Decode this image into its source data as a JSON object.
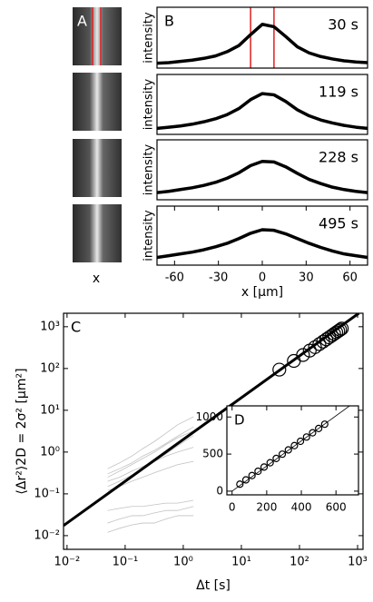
{
  "panel_a": {
    "label": "A",
    "xlabel": "x"
  },
  "chart_data": [
    {
      "type": "line",
      "label": "B",
      "annotation": "30 s",
      "ylabel": "intensity",
      "xlim": [
        -72,
        72
      ],
      "ylim": [
        0,
        1
      ],
      "x": [
        -72,
        -64,
        -56,
        -48,
        -40,
        -32,
        -24,
        -16,
        -8,
        0,
        8,
        16,
        24,
        32,
        40,
        48,
        56,
        64,
        72
      ],
      "vlines": [
        -8,
        8
      ],
      "vline_color": "#e02020",
      "series": [
        {
          "color": "#000000",
          "style": "line",
          "values": [
            0.08,
            0.09,
            0.11,
            0.13,
            0.16,
            0.2,
            0.27,
            0.37,
            0.55,
            0.72,
            0.68,
            0.52,
            0.35,
            0.25,
            0.19,
            0.15,
            0.12,
            0.1,
            0.09
          ]
        }
      ]
    },
    {
      "type": "line",
      "annotation": "119 s",
      "ylabel": "intensity",
      "xlim": [
        -72,
        72
      ],
      "ylim": [
        0,
        1
      ],
      "x": [
        -72,
        -64,
        -56,
        -48,
        -40,
        -32,
        -24,
        -16,
        -8,
        0,
        8,
        16,
        24,
        32,
        40,
        48,
        56,
        64,
        72
      ],
      "series": [
        {
          "color": "#000000",
          "style": "line",
          "values": [
            0.1,
            0.12,
            0.14,
            0.17,
            0.21,
            0.26,
            0.33,
            0.43,
            0.58,
            0.68,
            0.66,
            0.55,
            0.41,
            0.31,
            0.24,
            0.19,
            0.15,
            0.12,
            0.1
          ]
        }
      ]
    },
    {
      "type": "line",
      "annotation": "228 s",
      "ylabel": "intensity",
      "xlim": [
        -72,
        72
      ],
      "ylim": [
        0,
        1
      ],
      "x": [
        -72,
        -64,
        -56,
        -48,
        -40,
        -32,
        -24,
        -16,
        -8,
        0,
        8,
        16,
        24,
        32,
        40,
        48,
        56,
        64,
        72
      ],
      "series": [
        {
          "color": "#000000",
          "style": "line",
          "values": [
            0.12,
            0.14,
            0.17,
            0.2,
            0.24,
            0.29,
            0.36,
            0.45,
            0.57,
            0.64,
            0.63,
            0.55,
            0.44,
            0.34,
            0.27,
            0.21,
            0.17,
            0.14,
            0.12
          ]
        }
      ]
    },
    {
      "type": "line",
      "annotation": "495 s",
      "ylabel": "intensity",
      "xlabel": "x [µm]",
      "xlim": [
        -72,
        72
      ],
      "ylim": [
        0,
        1
      ],
      "xticks": [
        -60,
        -30,
        0,
        30,
        60
      ],
      "x": [
        -72,
        -64,
        -56,
        -48,
        -40,
        -32,
        -24,
        -16,
        -8,
        0,
        8,
        16,
        24,
        32,
        40,
        48,
        56,
        64,
        72
      ],
      "series": [
        {
          "color": "#000000",
          "style": "line",
          "values": [
            0.13,
            0.16,
            0.19,
            0.22,
            0.26,
            0.31,
            0.37,
            0.45,
            0.54,
            0.6,
            0.59,
            0.53,
            0.45,
            0.37,
            0.3,
            0.24,
            0.19,
            0.16,
            0.13
          ]
        }
      ]
    },
    {
      "type": "line",
      "label": "C",
      "xlabel": "Δt [s]",
      "ylabel": "⟨Δr²⟩2D = 2σ² [µm²]",
      "log_x": true,
      "log_y": true,
      "xlim": [
        0.0087,
        1240
      ],
      "ylim": [
        0.0047,
        2100
      ],
      "xticks": [
        {
          "value": 0.01,
          "label": "10⁻²"
        },
        {
          "value": 0.1,
          "label": "10⁻¹"
        },
        {
          "value": 1,
          "label": "10⁰"
        },
        {
          "value": 10,
          "label": "10¹"
        },
        {
          "value": 100,
          "label": "10²"
        },
        {
          "value": 1000,
          "label": "10³"
        }
      ],
      "yticks": [
        {
          "value": 0.01,
          "label": "10⁻²"
        },
        {
          "value": 0.1,
          "label": "10⁻¹"
        },
        {
          "value": 1,
          "label": "10⁰"
        },
        {
          "value": 10,
          "label": "10¹"
        },
        {
          "value": 100,
          "label": "10²"
        },
        {
          "value": 1000,
          "label": "10³"
        }
      ],
      "series": [
        {
          "color": "#999999",
          "style": "line",
          "x": [
            0.05,
            0.08,
            0.13,
            0.2,
            0.32,
            0.5,
            0.8,
            1.5
          ],
          "values": [
            0.15,
            0.2,
            0.28,
            0.4,
            0.6,
            0.9,
            1.4,
            2.5
          ]
        },
        {
          "color": "#999999",
          "style": "line",
          "x": [
            0.05,
            0.08,
            0.13,
            0.2,
            0.32,
            0.5,
            0.8,
            1.5
          ],
          "values": [
            0.3,
            0.4,
            0.55,
            0.8,
            1.1,
            1.6,
            2.4,
            4
          ]
        },
        {
          "color": "#999999",
          "style": "line",
          "x": [
            0.05,
            0.08,
            0.13,
            0.2,
            0.32,
            0.5,
            0.8,
            1.5
          ],
          "values": [
            0.2,
            0.25,
            0.35,
            0.45,
            0.6,
            0.8,
            1.0,
            1.3
          ]
        },
        {
          "color": "#999999",
          "style": "line",
          "x": [
            0.05,
            0.08,
            0.13,
            0.2,
            0.32,
            0.5,
            0.8,
            1.5
          ],
          "values": [
            0.4,
            0.55,
            0.8,
            1.2,
            1.8,
            2.8,
            4.5,
            7
          ]
        },
        {
          "color": "#999999",
          "style": "line",
          "x": [
            0.05,
            0.08,
            0.13,
            0.2,
            0.32,
            0.5,
            0.8,
            1.5
          ],
          "values": [
            0.12,
            0.15,
            0.2,
            0.25,
            0.32,
            0.4,
            0.5,
            0.6
          ]
        },
        {
          "color": "#999999",
          "style": "line",
          "x": [
            0.05,
            0.08,
            0.13,
            0.2,
            0.32,
            0.5,
            0.8,
            1.5
          ],
          "values": [
            0.25,
            0.35,
            0.5,
            0.7,
            1.0,
            1.5,
            2.2,
            3.2
          ]
        },
        {
          "color": "#999999",
          "style": "line",
          "x": [
            0.05,
            0.08,
            0.13,
            0.2,
            0.32,
            0.5,
            0.8,
            1.5
          ],
          "values": [
            0.02,
            0.025,
            0.03,
            0.03,
            0.035,
            0.04,
            0.04,
            0.05
          ]
        },
        {
          "color": "#999999",
          "style": "line",
          "x": [
            0.05,
            0.08,
            0.13,
            0.2,
            0.32,
            0.5,
            0.8,
            1.5
          ],
          "values": [
            0.04,
            0.045,
            0.05,
            0.05,
            0.055,
            0.06,
            0.06,
            0.07
          ]
        },
        {
          "color": "#999999",
          "style": "line",
          "x": [
            0.05,
            0.08,
            0.13,
            0.2,
            0.32,
            0.5,
            0.8,
            1.5
          ],
          "values": [
            0.012,
            0.015,
            0.018,
            0.02,
            0.02,
            0.025,
            0.03,
            0.03
          ]
        },
        {
          "color": "#000000",
          "style": "line",
          "x": [
            0.0087,
            1050
          ],
          "values": [
            0.0174,
            2100
          ]
        },
        {
          "color": "#000000",
          "style": "marker",
          "x": [
            45,
            80,
            115,
            150,
            185,
            220,
            255,
            290,
            325,
            360,
            395,
            430,
            465,
            500,
            535
          ],
          "values": [
            94,
            152,
            210,
            268,
            325,
            383,
            441,
            499,
            556,
            614,
            672,
            730,
            787,
            845,
            903
          ]
        }
      ]
    },
    {
      "type": "line",
      "label": "D",
      "xlim": [
        -30,
        730
      ],
      "ylim": [
        -50,
        1150
      ],
      "xticks": [
        0,
        200,
        400,
        600
      ],
      "yticks": [
        0,
        500,
        1000
      ],
      "series": [
        {
          "color": "#000000",
          "style": "line",
          "x": [
            0,
            720
          ],
          "values": [
            0,
            1220
          ]
        },
        {
          "color": "#000000",
          "style": "marker",
          "x": [
            45,
            80,
            115,
            150,
            185,
            220,
            255,
            290,
            325,
            360,
            395,
            430,
            465,
            500,
            535
          ],
          "values": [
            94,
            152,
            210,
            268,
            325,
            383,
            441,
            499,
            556,
            614,
            672,
            730,
            787,
            845,
            903
          ]
        }
      ]
    }
  ]
}
